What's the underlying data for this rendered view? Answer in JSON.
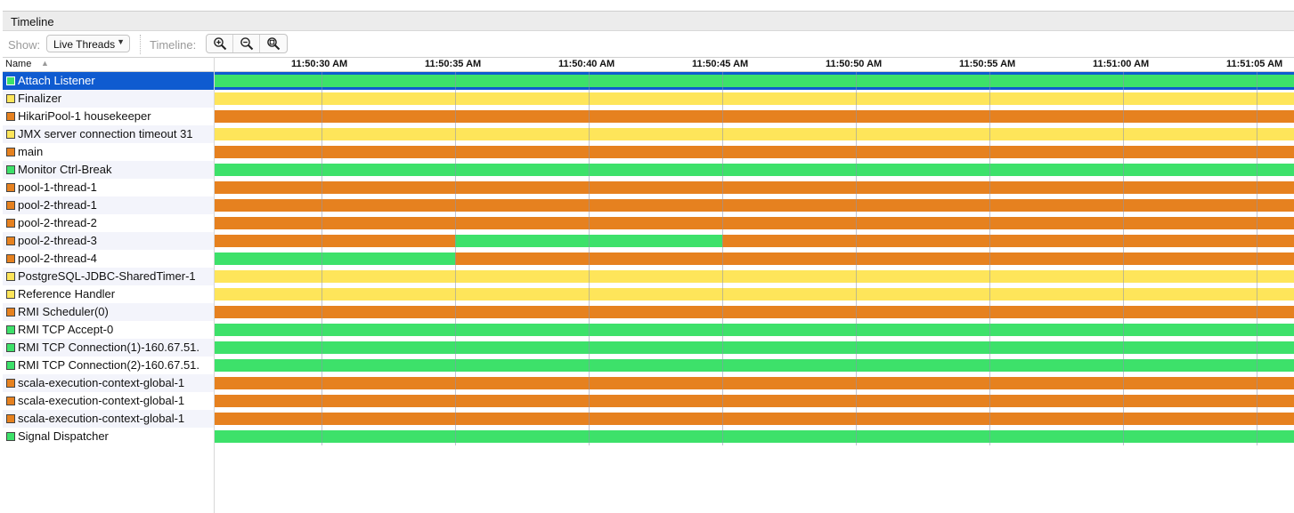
{
  "tab": {
    "title": "Timeline"
  },
  "toolbar": {
    "show_label": "Show:",
    "show_value": "Live Threads",
    "timeline_label": "Timeline:",
    "zoom_in_icon": "zoom-in-icon",
    "zoom_out_icon": "zoom-out-icon",
    "zoom_fit_icon": "zoom-fit-icon"
  },
  "table": {
    "name_header": "Name",
    "sort": "ascending",
    "time_ticks": [
      "11:50:30 AM",
      "11:50:35 AM",
      "11:50:40 AM",
      "11:50:45 AM",
      "11:50:50 AM",
      "11:50:55 AM",
      "11:51:00 AM",
      "11:51:05 AM"
    ],
    "state_colors": {
      "running": "#3de16a",
      "sleeping": "#fee55a",
      "waiting": "#e6811f"
    },
    "threads": [
      {
        "name": "Attach Listener",
        "state": "running",
        "selected": true
      },
      {
        "name": "Finalizer",
        "state": "sleeping"
      },
      {
        "name": "HikariPool-1 housekeeper",
        "state": "waiting"
      },
      {
        "name": "JMX server connection timeout 31",
        "state": "sleeping"
      },
      {
        "name": "main",
        "state": "waiting"
      },
      {
        "name": "Monitor Ctrl-Break",
        "state": "running"
      },
      {
        "name": "pool-1-thread-1",
        "state": "waiting"
      },
      {
        "name": "pool-2-thread-1",
        "state": "waiting"
      },
      {
        "name": "pool-2-thread-2",
        "state": "waiting"
      },
      {
        "name": "pool-2-thread-3",
        "state": "waiting"
      },
      {
        "name": "pool-2-thread-4",
        "state": "waiting"
      },
      {
        "name": "PostgreSQL-JDBC-SharedTimer-1",
        "state": "sleeping"
      },
      {
        "name": "Reference Handler",
        "state": "sleeping"
      },
      {
        "name": "RMI Scheduler(0)",
        "state": "waiting"
      },
      {
        "name": "RMI TCP Accept-0",
        "state": "running"
      },
      {
        "name": "RMI TCP Connection(1)-160.67.51.",
        "state": "running"
      },
      {
        "name": "RMI TCP Connection(2)-160.67.51.",
        "state": "running"
      },
      {
        "name": "scala-execution-context-global-1",
        "state": "waiting"
      },
      {
        "name": "scala-execution-context-global-1",
        "state": "waiting"
      },
      {
        "name": "scala-execution-context-global-1",
        "state": "waiting"
      },
      {
        "name": "Signal Dispatcher",
        "state": "running"
      }
    ]
  }
}
